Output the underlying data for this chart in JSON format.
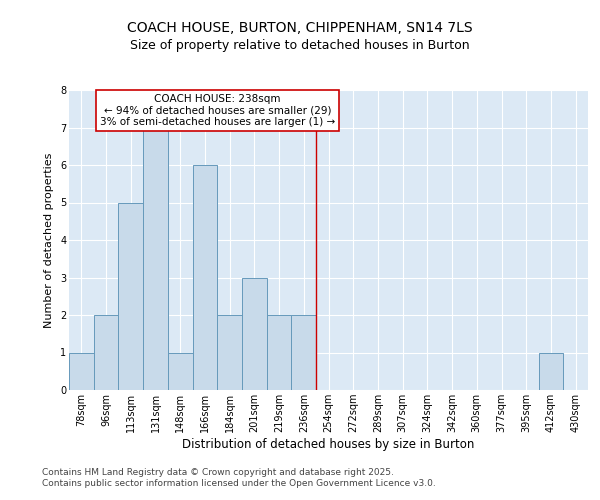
{
  "title1": "COACH HOUSE, BURTON, CHIPPENHAM, SN14 7LS",
  "title2": "Size of property relative to detached houses in Burton",
  "xlabel": "Distribution of detached houses by size in Burton",
  "ylabel": "Number of detached properties",
  "categories": [
    "78sqm",
    "96sqm",
    "113sqm",
    "131sqm",
    "148sqm",
    "166sqm",
    "184sqm",
    "201sqm",
    "219sqm",
    "236sqm",
    "254sqm",
    "272sqm",
    "289sqm",
    "307sqm",
    "324sqm",
    "342sqm",
    "360sqm",
    "377sqm",
    "395sqm",
    "412sqm",
    "430sqm"
  ],
  "values": [
    1,
    2,
    5,
    7,
    1,
    6,
    2,
    3,
    2,
    2,
    0,
    0,
    0,
    0,
    0,
    0,
    0,
    0,
    0,
    1,
    0
  ],
  "bar_color": "#c8daea",
  "bar_edge_color": "#6699bb",
  "bar_edge_width": 0.7,
  "red_line_index": 9.5,
  "annotation_text": "COACH HOUSE: 238sqm\n← 94% of detached houses are smaller (29)\n3% of semi-detached houses are larger (1) →",
  "annotation_box_color": "#ffffff",
  "annotation_box_edge_color": "#cc0000",
  "red_line_color": "#cc0000",
  "ylim": [
    0,
    8
  ],
  "yticks": [
    0,
    1,
    2,
    3,
    4,
    5,
    6,
    7,
    8
  ],
  "background_color": "#dce9f5",
  "grid_color": "#ffffff",
  "footer_text": "Contains HM Land Registry data © Crown copyright and database right 2025.\nContains public sector information licensed under the Open Government Licence v3.0.",
  "title1_fontsize": 10,
  "title2_fontsize": 9,
  "xlabel_fontsize": 8.5,
  "ylabel_fontsize": 8,
  "tick_fontsize": 7,
  "footer_fontsize": 6.5,
  "ann_fontsize": 7.5
}
